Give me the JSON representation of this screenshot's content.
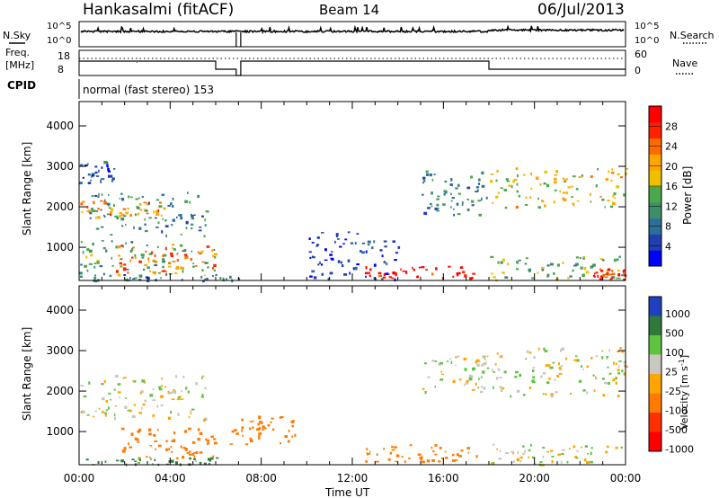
{
  "header": {
    "station": "Hankasalmi (fitACF)",
    "beam": "Beam 14",
    "date": "06/Jul/2013"
  },
  "sky_panel": {
    "left_label": "N.Sky",
    "right_label": "N.Search",
    "left_ticks": [
      "10^5",
      "10^0"
    ],
    "right_ticks": [
      "10^5",
      "10^0"
    ]
  },
  "freq_panel": {
    "left_label_1": "Freq.",
    "left_label_2": "[MHz]",
    "right_label": "Nave",
    "left_ticks": [
      "18",
      "8"
    ],
    "right_ticks": [
      "60",
      "0"
    ]
  },
  "cpid": {
    "label": "CPID",
    "value": "normal (fast stereo) 153"
  },
  "colors": {
    "power": [
      "#0000ff",
      "#1f3fb0",
      "#2f6e9a",
      "#3d8f6a",
      "#4aa84a",
      "#f0c000",
      "#ffa500",
      "#ff6a00",
      "#ff2000",
      "#ff0000"
    ],
    "velocity": [
      "#2040c0",
      "#2f7a3a",
      "#5fc33f",
      "#c8c8c0",
      "#ffa500",
      "#ff7a00",
      "#ff3000",
      "#ff0000"
    ]
  },
  "chart_data": [
    {
      "type": "heatmap",
      "ylabel": "Slant Range [km]",
      "xlabel": "Time UT",
      "x_ticks": [
        "00:00",
        "04:00",
        "08:00",
        "12:00",
        "16:00",
        "20:00",
        "00:00"
      ],
      "y_ticks": [
        "1000",
        "2000",
        "3000",
        "4000"
      ],
      "ylim": [
        180,
        4600
      ],
      "colorbar_label": "Power [dB]",
      "colorbar_ticks": [
        "4",
        "8",
        "12",
        "16",
        "20",
        "24",
        "28"
      ],
      "colorbar_range": [
        0,
        32
      ],
      "regions": [
        {
          "t0": 0.0,
          "t1": 3.8,
          "r0": 1750,
          "r1": 2200,
          "level": 22
        },
        {
          "t0": 0.3,
          "t1": 5.6,
          "r0": 1300,
          "r1": 2400,
          "level": 10
        },
        {
          "t0": 0.0,
          "t1": 1.5,
          "r0": 2600,
          "r1": 3200,
          "level": 6
        },
        {
          "t0": 0.0,
          "t1": 6.0,
          "r0": 300,
          "r1": 1200,
          "level": 12
        },
        {
          "t0": 1.5,
          "t1": 6.0,
          "r0": 400,
          "r1": 1100,
          "level": 24
        },
        {
          "t0": 0.0,
          "t1": 7.0,
          "r0": 180,
          "r1": 350,
          "level": 8
        },
        {
          "t0": 10.0,
          "t1": 14.0,
          "r0": 200,
          "r1": 1400,
          "level": 4
        },
        {
          "t0": 12.5,
          "t1": 17.5,
          "r0": 250,
          "r1": 550,
          "level": 30
        },
        {
          "t0": 15.0,
          "t1": 18.0,
          "r0": 1800,
          "r1": 2900,
          "level": 10
        },
        {
          "t0": 18.0,
          "t1": 24.0,
          "r0": 2000,
          "r1": 3000,
          "level": 18
        },
        {
          "t0": 18.0,
          "t1": 24.0,
          "r0": 200,
          "r1": 800,
          "level": 14
        },
        {
          "t0": 22.5,
          "t1": 24.0,
          "r0": 200,
          "r1": 500,
          "level": 28
        }
      ]
    },
    {
      "type": "heatmap",
      "ylabel": "Slant Range [km]",
      "xlabel": "Time UT",
      "x_ticks": [
        "00:00",
        "04:00",
        "08:00",
        "12:00",
        "16:00",
        "20:00",
        "00:00"
      ],
      "y_ticks": [
        "1000",
        "2000",
        "3000",
        "4000"
      ],
      "ylim": [
        180,
        4600
      ],
      "colorbar_label": "Velocity [m s^-1]",
      "colorbar_ticks": [
        "1000",
        "500",
        "100",
        "25",
        "-25",
        "-100",
        "-500",
        "-1000"
      ],
      "regions": [
        {
          "t0": 0.0,
          "t1": 5.6,
          "r0": 1300,
          "r1": 2400,
          "velocity": 0
        },
        {
          "t0": 0.0,
          "t1": 6.0,
          "r0": 200,
          "r1": 400,
          "velocity": 150
        },
        {
          "t0": 1.5,
          "t1": 6.0,
          "r0": 350,
          "r1": 1100,
          "velocity": -300
        },
        {
          "t0": 6.5,
          "t1": 9.5,
          "r0": 700,
          "r1": 1400,
          "velocity": -400
        },
        {
          "t0": 12.5,
          "t1": 17.5,
          "r0": 250,
          "r1": 700,
          "velocity": -150
        },
        {
          "t0": 15.0,
          "t1": 18.0,
          "r0": 2000,
          "r1": 2900,
          "velocity": 0
        },
        {
          "t0": 18.0,
          "t1": 24.0,
          "r0": 1900,
          "r1": 3100,
          "velocity": 0
        },
        {
          "t0": 18.0,
          "t1": 24.0,
          "r0": 200,
          "r1": 700,
          "velocity": 0
        }
      ]
    }
  ]
}
